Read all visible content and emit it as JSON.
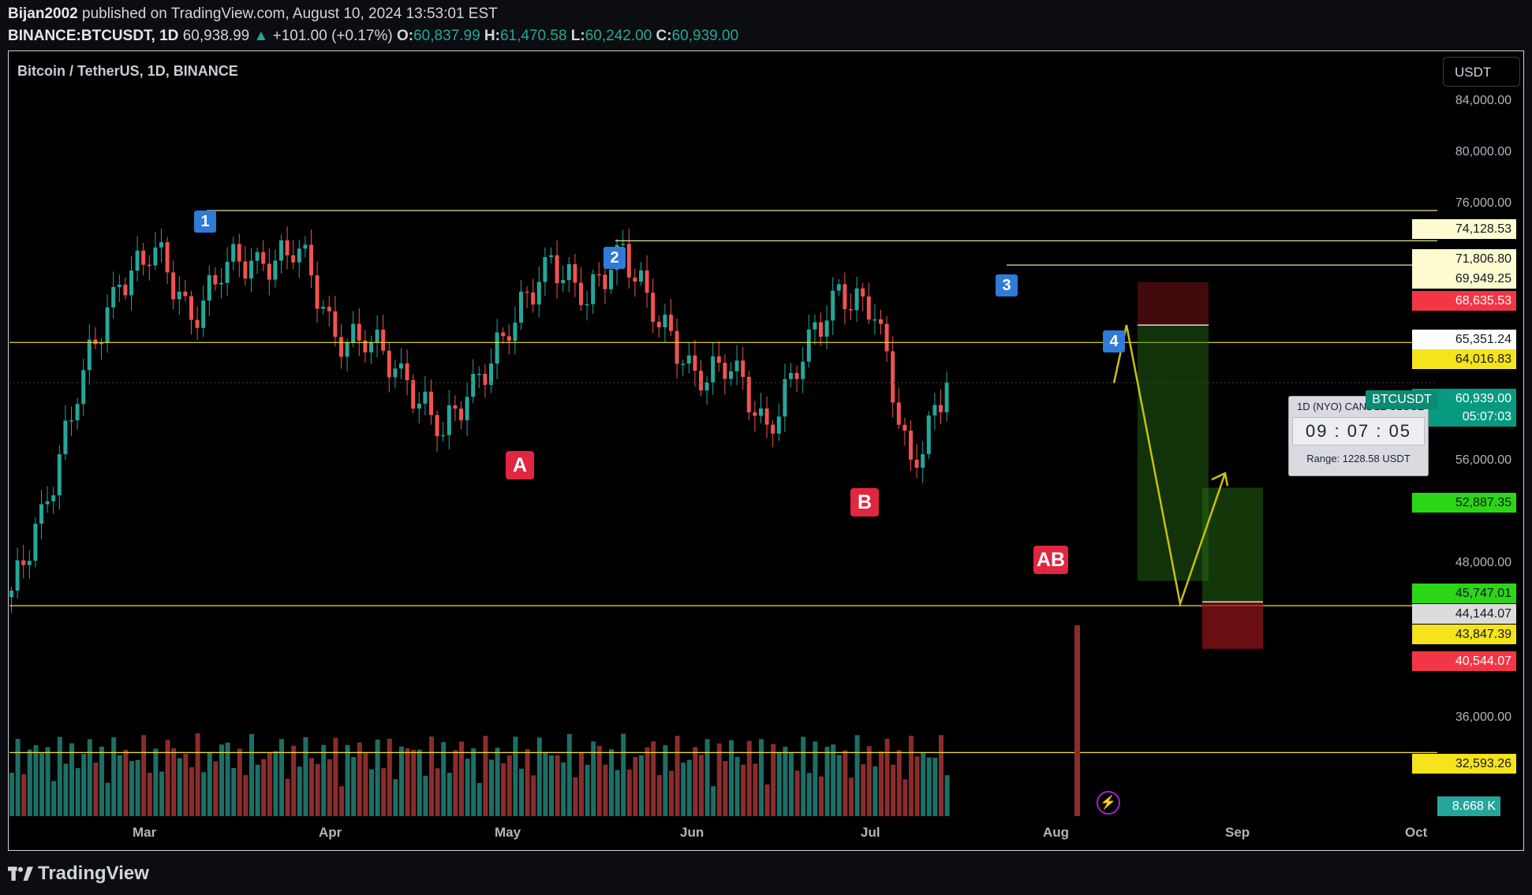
{
  "header": {
    "author": "Bijan2002",
    "published_text": "published on TradingView.com, August 10, 2024 13:53:01 EST",
    "symbol": "BINANCE:BTCUSDT, 1D",
    "last_price": "60,938.99",
    "change_arrow": "▲",
    "change": "+101.00 (+0.17%)",
    "open_label": "O:",
    "open": "60,837.99",
    "high_label": "H:",
    "high": "61,470.58",
    "low_label": "L:",
    "low": "60,242.00",
    "close_label": "C:",
    "close": "60,939.00"
  },
  "chart_title": "Bitcoin / TetherUS, 1D, BINANCE",
  "currency_button": "USDT",
  "price_axis": [
    "84,000.00",
    "80,000.00",
    "76,000.00",
    "56,000.00",
    "48,000.00",
    "36,000.00"
  ],
  "price_badges": [
    {
      "label": "74,128.53",
      "bg": "#fffbd0",
      "fg": "#131722"
    },
    {
      "label": "71,806.80",
      "bg": "#fffbd0",
      "fg": "#131722"
    },
    {
      "label": "69,949.25",
      "bg": "#fffbd0",
      "fg": "#131722"
    },
    {
      "label": "68,635.53",
      "bg": "#f23645",
      "fg": "#ffffff"
    },
    {
      "label": "65,351.24",
      "bg": "#ffffff",
      "fg": "#131722"
    },
    {
      "label": "64,016.83",
      "bg": "#f5e31b",
      "fg": "#131722"
    },
    {
      "label": "60,939.00",
      "bg": "#089981",
      "fg": "#ffffff"
    },
    {
      "label": "05:07:03",
      "bg": "#089981",
      "fg": "#ffffff"
    },
    {
      "label": "52,887.35",
      "bg": "#2bd615",
      "fg": "#131722"
    },
    {
      "label": "45,747.01",
      "bg": "#2bd615",
      "fg": "#131722"
    },
    {
      "label": "44,144.07",
      "bg": "#dcdcdc",
      "fg": "#131722"
    },
    {
      "label": "43,847.39",
      "bg": "#f5e31b",
      "fg": "#131722"
    },
    {
      "label": "40,544.07",
      "bg": "#f23645",
      "fg": "#ffffff"
    },
    {
      "label": "32,593.26",
      "bg": "#f5e31b",
      "fg": "#131722"
    },
    {
      "label": "8.668 K",
      "bg": "#26a69a",
      "fg": "#ffffff"
    }
  ],
  "date_axis": [
    "Mar",
    "Apr",
    "May",
    "Jun",
    "Jul",
    "Aug",
    "Sep",
    "Oct"
  ],
  "wave_labels": [
    "1",
    "2",
    "3",
    "4"
  ],
  "pattern_labels": [
    "A",
    "B",
    "AB"
  ],
  "countdown": {
    "header": "1D (NYO) CANDLE CLOSE",
    "timer": "09 : 07 : 05",
    "range": "Range: 1228.58 USDT"
  },
  "symbol_tag": "BTCUSDT",
  "footer_brand": "TradingView",
  "colors": {
    "up": "#26a69a",
    "down": "#ef5350",
    "level": "#f5e31b",
    "wave": "#2f7bd6",
    "pattern": "#e0273f"
  },
  "chart_data": {
    "type": "candlestick",
    "interval": "1D",
    "x": [
      "Feb-10",
      "Feb-20",
      "Mar-01",
      "Mar-08",
      "Mar-14",
      "Mar-20",
      "Mar-27",
      "Apr-01",
      "Apr-08",
      "Apr-13",
      "Apr-20",
      "Apr-30",
      "May-01",
      "May-10",
      "May-20",
      "May-21",
      "Jun-01",
      "Jun-07",
      "Jun-15",
      "Jun-24",
      "Jul-01",
      "Jul-05",
      "Jul-15",
      "Jul-22",
      "Jul-29",
      "Aug-05",
      "Aug-10"
    ],
    "close": [
      45000,
      51800,
      62000,
      68300,
      71500,
      65500,
      70500,
      69700,
      71600,
      64000,
      64500,
      60600,
      57500,
      61000,
      66200,
      70000,
      67700,
      70800,
      66000,
      61000,
      62700,
      56800,
      63500,
      67500,
      66800,
      54000,
      60939
    ],
    "levels": [
      74128.53,
      71806.8,
      69949.25,
      64016.83,
      43847.39,
      32593.26
    ],
    "trade_box_1": {
      "stop": 68635.53,
      "entry": 65351.24,
      "target": 45747.01
    },
    "trade_box_2": {
      "target": 52887.35,
      "entry": 44144.07,
      "stop": 40544.07
    },
    "projection": [
      65351.24,
      44000,
      54000
    ],
    "last_volume": "8.668 K"
  }
}
